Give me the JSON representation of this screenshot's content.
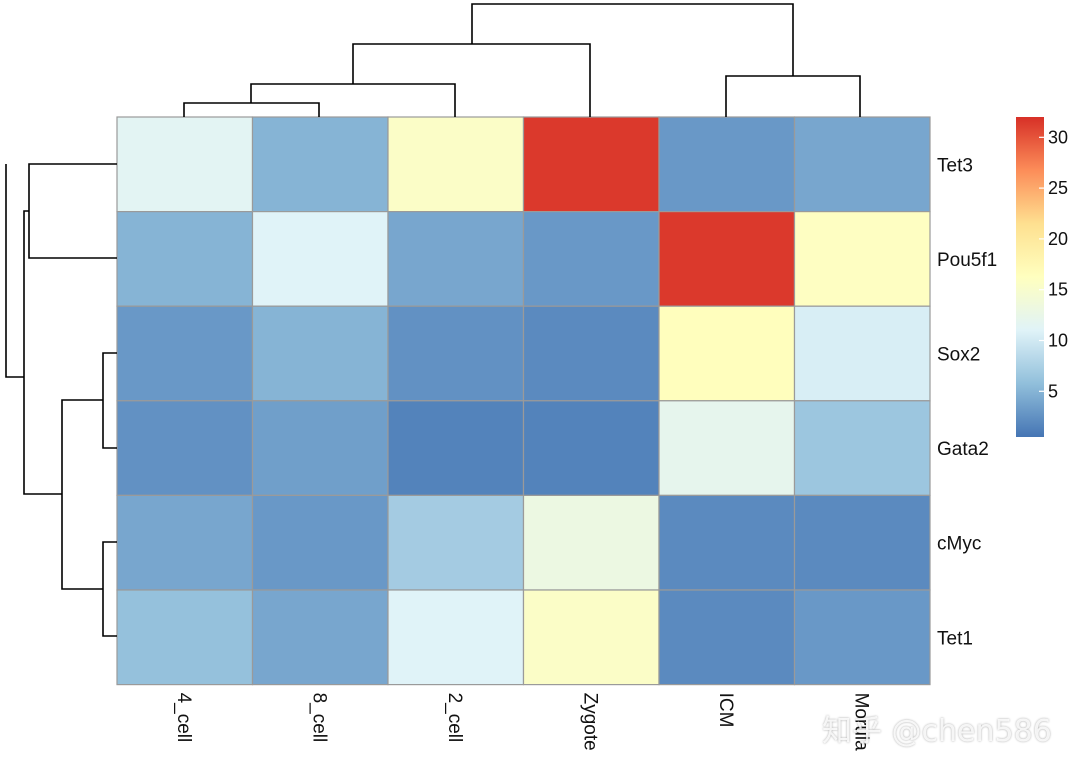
{
  "chart_data": {
    "type": "heatmap",
    "title": "",
    "columns": [
      "4_cell",
      "8_cell",
      "2_cell",
      "Zygote",
      "ICM",
      "Morula"
    ],
    "rows": [
      "Tet3",
      "Pou5f1",
      "Sox2",
      "Gata2",
      "cMyc",
      "Tet1"
    ],
    "values": [
      [
        11.5,
        5.0,
        15.5,
        31.5,
        3.0,
        4.0
      ],
      [
        5.0,
        11.0,
        4.0,
        3.0,
        31.5,
        16.0
      ],
      [
        3.0,
        5.0,
        2.5,
        2.0,
        16.5,
        10.5
      ],
      [
        2.5,
        3.5,
        1.5,
        1.5,
        12.0,
        6.5
      ],
      [
        4.0,
        3.0,
        7.0,
        13.0,
        2.0,
        2.0
      ],
      [
        6.0,
        4.0,
        11.0,
        15.5,
        2.0,
        3.0
      ]
    ],
    "color_scale": {
      "min": 0.5,
      "max": 32,
      "stops": [
        "#4575B4",
        "#91BFDB",
        "#E0F3F8",
        "#FFFFBF",
        "#FEE090",
        "#FC8D59",
        "#D73027"
      ],
      "ticks": [
        5,
        10,
        15,
        20,
        25,
        30
      ]
    },
    "dendrograms": {
      "column": [
        "((4_cell,8_cell),2_cell)",
        "Zygote",
        "(ICM,Morula)"
      ],
      "row": [
        "(Tet3,Pou5f1)",
        "((Sox2,Gata2),(cMyc,Tet1))"
      ]
    },
    "legend_position": "right"
  },
  "watermark": "知乎 @chen586"
}
